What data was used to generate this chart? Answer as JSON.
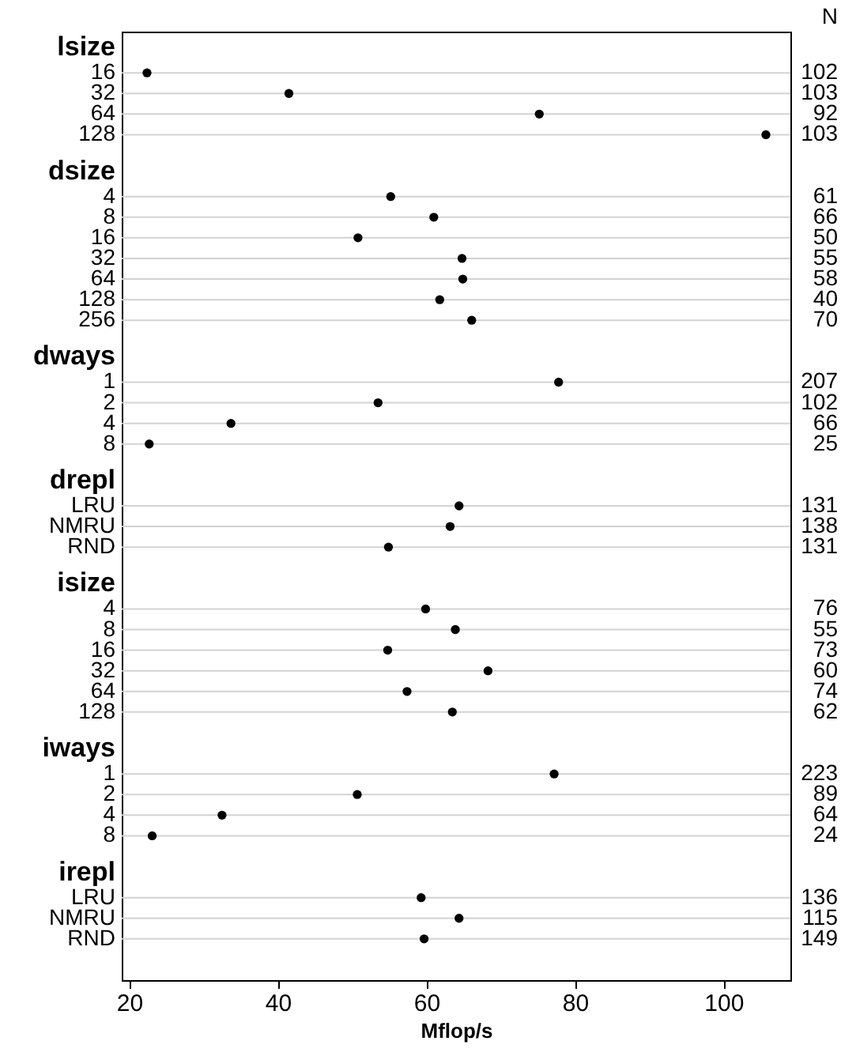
{
  "chart_data": {
    "type": "scatter",
    "orientation": "horizontal",
    "xlabel": "Mflop/s",
    "y2label": "N",
    "categories": [
      "lsize",
      "16",
      "32",
      "64",
      "128",
      null,
      "dsize",
      "4",
      "8",
      "16",
      "32",
      "64",
      "128",
      "256",
      null,
      "dways",
      "1",
      "2",
      "4",
      "8",
      null,
      "drepl",
      "LRU",
      "NMRU",
      "RND",
      null,
      "isize",
      "4",
      "8",
      "16",
      "32",
      "64",
      "128",
      null,
      "iways",
      "1",
      "2",
      "4",
      "8",
      null,
      "irepl",
      "LRU",
      "NMRU",
      "RND"
    ],
    "values": [
      null,
      22.4,
      41.5,
      75.2,
      105.7,
      null,
      null,
      55.2,
      61.0,
      50.8,
      64.8,
      64.9,
      61.8,
      66.1,
      null,
      null,
      77.8,
      53.5,
      33.7,
      22.7,
      null,
      null,
      64.4,
      63.2,
      54.9,
      null,
      null,
      59.9,
      63.9,
      54.8,
      68.3,
      57.4,
      63.5,
      null,
      null,
      77.2,
      50.7,
      32.5,
      23.1,
      null,
      null,
      59.3,
      64.4,
      59.7
    ],
    "y2_categories": [
      null,
      "102",
      "103",
      "92",
      "103",
      null,
      null,
      "61",
      "66",
      "50",
      "55",
      "58",
      "40",
      "70",
      null,
      null,
      "207",
      "102",
      "66",
      "25",
      null,
      null,
      "131",
      "138",
      "131",
      null,
      null,
      "76",
      "55",
      "73",
      "60",
      "74",
      "62",
      null,
      null,
      "223",
      "89",
      "64",
      "24",
      null,
      null,
      "136",
      "115",
      "149"
    ],
    "color": "#000000",
    "marker": "circle",
    "grid": "y",
    "xlim": [
      19,
      109
    ],
    "xticks": [
      20,
      40,
      60,
      80,
      100
    ]
  }
}
